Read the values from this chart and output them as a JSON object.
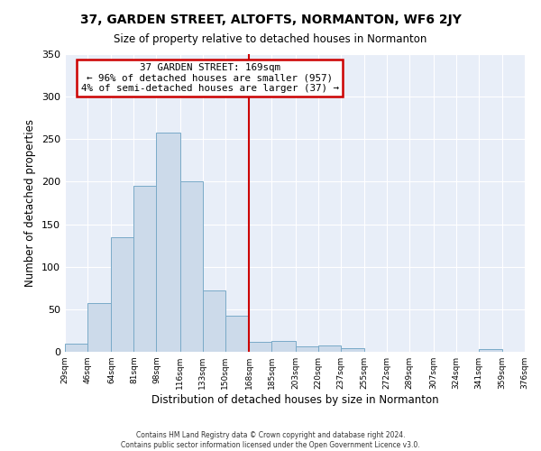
{
  "title": "37, GARDEN STREET, ALTOFTS, NORMANTON, WF6 2JY",
  "subtitle": "Size of property relative to detached houses in Normanton",
  "xlabel": "Distribution of detached houses by size in Normanton",
  "ylabel": "Number of detached properties",
  "bar_color": "#ccdaea",
  "bar_edge_color": "#7aaac8",
  "background_color": "#e8eef8",
  "grid_color": "#ffffff",
  "redline_x": 168,
  "annotation_text": "  37 GARDEN STREET: 169sqm  \n← 96% of detached houses are smaller (957)\n4% of semi-detached houses are larger (37) →",
  "annotation_box_color": "white",
  "annotation_border_color": "#cc0000",
  "redline_color": "#cc0000",
  "bin_edges": [
    29,
    46,
    64,
    81,
    98,
    116,
    133,
    150,
    168,
    185,
    203,
    220,
    237,
    255,
    272,
    289,
    307,
    324,
    341,
    359,
    376
  ],
  "bar_heights": [
    10,
    57,
    135,
    195,
    258,
    200,
    72,
    42,
    12,
    13,
    6,
    7,
    4,
    0,
    0,
    0,
    0,
    0,
    3,
    0
  ],
  "tick_labels": [
    "29sqm",
    "46sqm",
    "64sqm",
    "81sqm",
    "98sqm",
    "116sqm",
    "133sqm",
    "150sqm",
    "168sqm",
    "185sqm",
    "203sqm",
    "220sqm",
    "237sqm",
    "255sqm",
    "272sqm",
    "289sqm",
    "307sqm",
    "324sqm",
    "341sqm",
    "359sqm",
    "376sqm"
  ],
  "ylim": [
    0,
    350
  ],
  "yticks": [
    0,
    50,
    100,
    150,
    200,
    250,
    300,
    350
  ],
  "footer_lines": [
    "Contains HM Land Registry data © Crown copyright and database right 2024.",
    "Contains public sector information licensed under the Open Government Licence v3.0."
  ]
}
